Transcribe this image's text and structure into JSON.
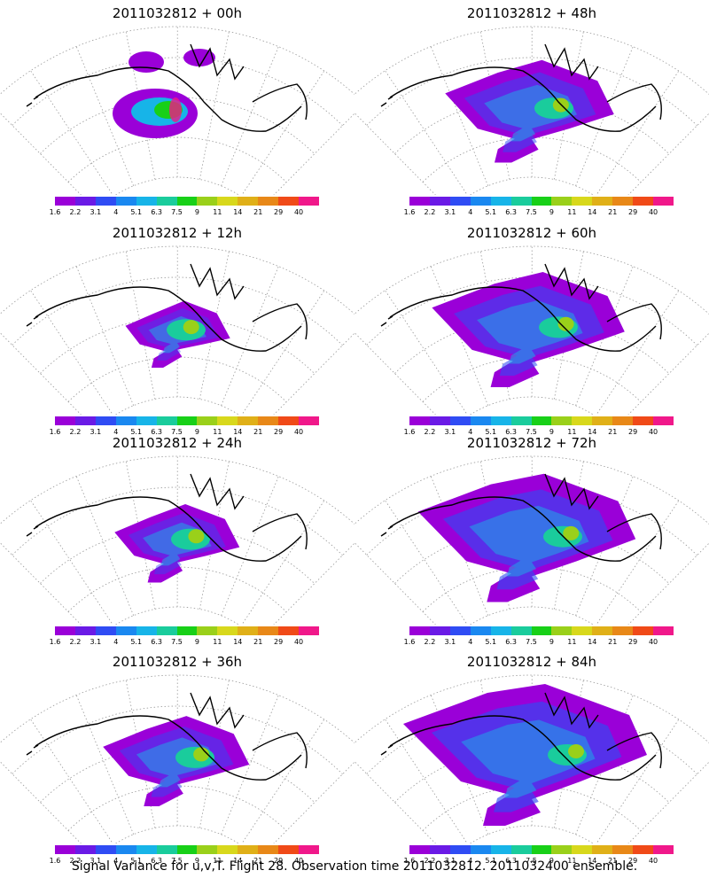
{
  "panels": [
    {
      "title": "2011032812 + 00h",
      "lead": 0
    },
    {
      "title": "2011032812 + 48h",
      "lead": 48
    },
    {
      "title": "2011032812 + 12h",
      "lead": 12
    },
    {
      "title": "2011032812 + 60h",
      "lead": 60
    },
    {
      "title": "2011032812 + 24h",
      "lead": 24
    },
    {
      "title": "2011032812 + 72h",
      "lead": 72
    },
    {
      "title": "2011032812 + 36h",
      "lead": 36
    },
    {
      "title": "2011032812 + 84h",
      "lead": 84
    }
  ],
  "colorbar": {
    "labels": [
      "1.6",
      "2.2",
      "3.1",
      "4",
      "5.1",
      "6.3",
      "7.5",
      "9",
      "11",
      "14",
      "21",
      "29",
      "40"
    ],
    "colors": [
      "#9a00d8",
      "#6a1ae6",
      "#2f4cf4",
      "#1a88f0",
      "#17b4e8",
      "#1acc9c",
      "#18d018",
      "#9ad01a",
      "#d8d81c",
      "#e0b018",
      "#e88818",
      "#f04a18",
      "#f0188a"
    ]
  },
  "footer": "Signal Variance for u,v,T. Flight 28. Observation time 2011032812. 2011032400 ensemble."
}
